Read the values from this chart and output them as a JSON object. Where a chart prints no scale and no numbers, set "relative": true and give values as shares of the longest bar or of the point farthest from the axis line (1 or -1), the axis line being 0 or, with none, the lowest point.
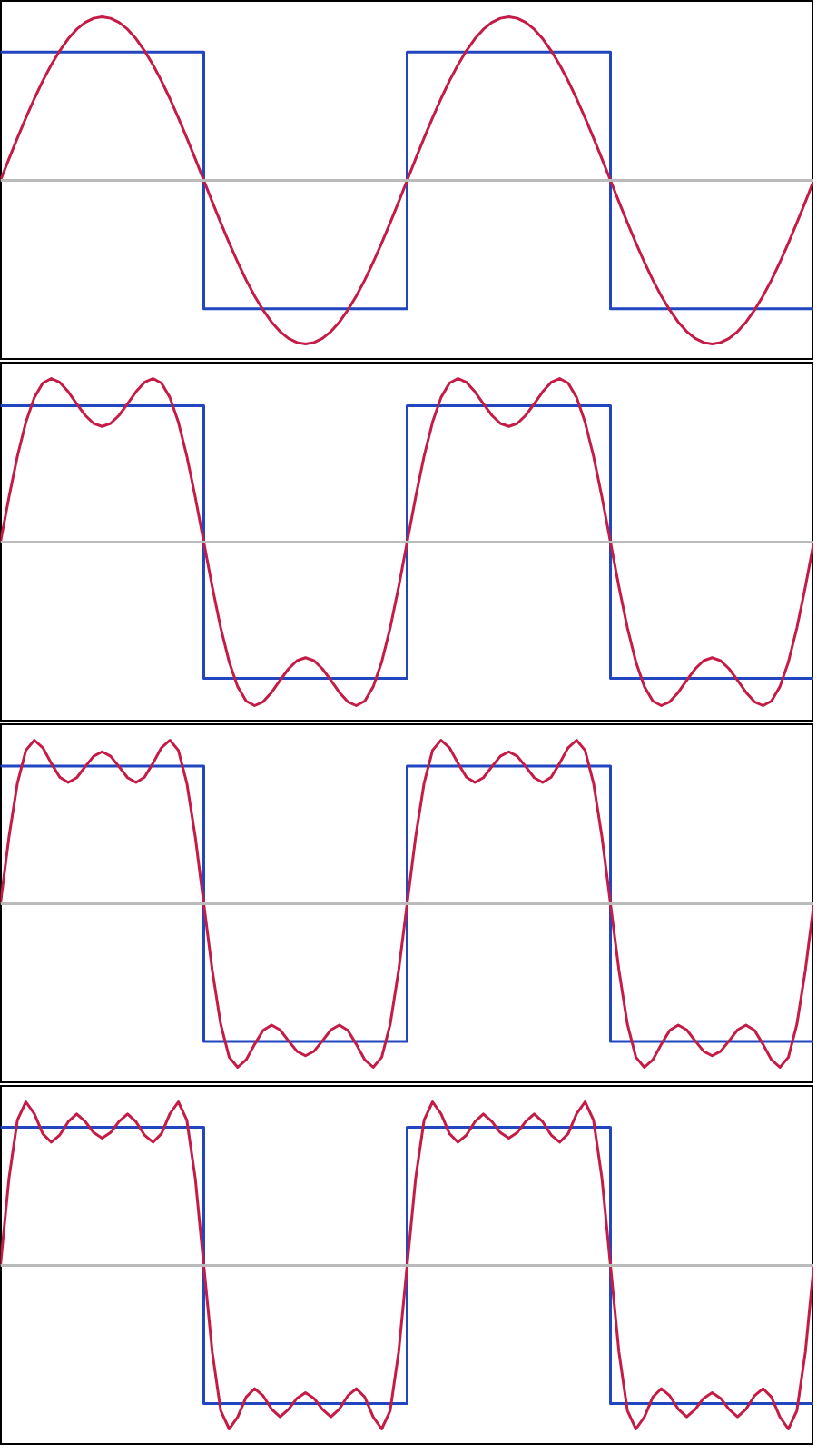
{
  "chart_data": [
    {
      "type": "line",
      "relative": true,
      "grid": false,
      "categories": [
        null,
        null,
        null,
        null,
        null,
        null,
        null,
        null,
        null,
        null,
        null,
        null,
        null,
        null,
        null,
        null,
        null,
        null,
        null,
        null,
        null,
        null,
        null,
        null,
        null,
        null,
        null,
        null,
        null,
        null,
        null,
        null,
        null,
        null,
        null,
        null,
        null,
        null,
        null,
        null,
        null,
        null,
        null,
        null,
        null,
        null,
        null,
        null,
        null,
        null,
        null,
        null,
        null,
        null,
        null,
        null,
        null,
        null,
        null,
        null,
        null,
        null,
        null,
        null,
        null,
        null,
        null,
        null,
        null,
        null,
        null,
        null,
        null,
        null,
        null,
        null,
        null,
        null,
        null,
        null,
        null,
        null,
        null,
        null,
        null,
        null,
        null,
        null,
        null,
        null,
        null,
        null,
        null,
        null,
        null,
        null,
        null
      ],
      "series": [
        {
          "type": "step",
          "color": "#2146c0",
          "values": [
            0.785,
            0.785,
            0.785,
            0.785,
            0.785,
            0.785,
            0.785,
            0.785,
            0.785,
            0.785,
            0.785,
            0.785,
            0.785,
            0.785,
            0.785,
            0.785,
            0.785,
            0.785,
            0.785,
            0.785,
            0.785,
            0.785,
            0.785,
            0.785,
            -0.785,
            -0.785,
            -0.785,
            -0.785,
            -0.785,
            -0.785,
            -0.785,
            -0.785,
            -0.785,
            -0.785,
            -0.785,
            -0.785,
            -0.785,
            -0.785,
            -0.785,
            -0.785,
            -0.785,
            -0.785,
            -0.785,
            -0.785,
            -0.785,
            -0.785,
            -0.785,
            -0.785,
            0.785,
            0.785,
            0.785,
            0.785,
            0.785,
            0.785,
            0.785,
            0.785,
            0.785,
            0.785,
            0.785,
            0.785,
            0.785,
            0.785,
            0.785,
            0.785,
            0.785,
            0.785,
            0.785,
            0.785,
            0.785,
            0.785,
            0.785,
            0.785,
            -0.785,
            -0.785,
            -0.785,
            -0.785,
            -0.785,
            -0.785,
            -0.785,
            -0.785,
            -0.785,
            -0.785,
            -0.785,
            -0.785,
            -0.785,
            -0.785,
            -0.785,
            -0.785,
            -0.785,
            -0.785,
            -0.785,
            -0.785,
            -0.785,
            -0.785,
            -0.785,
            -0.785,
            -0.785
          ]
        },
        {
          "color": "#c41c46",
          "values": [
            0,
            0.131,
            0.259,
            0.383,
            0.5,
            0.609,
            0.707,
            0.793,
            0.866,
            0.924,
            0.966,
            0.991,
            1,
            0.991,
            0.966,
            0.924,
            0.866,
            0.793,
            0.707,
            0.609,
            0.5,
            0.383,
            0.259,
            0.131,
            0,
            -0.131,
            -0.259,
            -0.383,
            -0.5,
            -0.609,
            -0.707,
            -0.793,
            -0.866,
            -0.924,
            -0.966,
            -0.991,
            -1,
            -0.991,
            -0.966,
            -0.924,
            -0.866,
            -0.793,
            -0.707,
            -0.609,
            -0.5,
            -0.383,
            -0.259,
            -0.131,
            0,
            0.131,
            0.259,
            0.383,
            0.5,
            0.609,
            0.707,
            0.793,
            0.866,
            0.924,
            0.966,
            0.991,
            1,
            0.991,
            0.966,
            0.924,
            0.866,
            0.793,
            0.707,
            0.609,
            0.5,
            0.383,
            0.259,
            0.131,
            0,
            -0.131,
            -0.259,
            -0.383,
            -0.5,
            -0.609,
            -0.707,
            -0.793,
            -0.866,
            -0.924,
            -0.966,
            -0.991,
            -1,
            -0.991,
            -0.966,
            -0.924,
            -0.866,
            -0.793,
            -0.707,
            -0.609,
            -0.5,
            -0.383,
            -0.259,
            -0.131,
            0
          ]
        }
      ]
    },
    {
      "type": "line",
      "relative": true,
      "grid": false,
      "categories": [
        null,
        null,
        null,
        null,
        null,
        null,
        null,
        null,
        null,
        null,
        null,
        null,
        null,
        null,
        null,
        null,
        null,
        null,
        null,
        null,
        null,
        null,
        null,
        null,
        null,
        null,
        null,
        null,
        null,
        null,
        null,
        null,
        null,
        null,
        null,
        null,
        null,
        null,
        null,
        null,
        null,
        null,
        null,
        null,
        null,
        null,
        null,
        null,
        null,
        null,
        null,
        null,
        null,
        null,
        null,
        null,
        null,
        null,
        null,
        null,
        null,
        null,
        null,
        null,
        null,
        null,
        null,
        null,
        null,
        null,
        null,
        null,
        null,
        null,
        null,
        null,
        null,
        null,
        null,
        null,
        null,
        null,
        null,
        null,
        null,
        null,
        null,
        null,
        null,
        null,
        null,
        null,
        null,
        null,
        null,
        null,
        null
      ],
      "series": [
        {
          "type": "step",
          "color": "#2146c0",
          "values": [
            0.833,
            0.833,
            0.833,
            0.833,
            0.833,
            0.833,
            0.833,
            0.833,
            0.833,
            0.833,
            0.833,
            0.833,
            0.833,
            0.833,
            0.833,
            0.833,
            0.833,
            0.833,
            0.833,
            0.833,
            0.833,
            0.833,
            0.833,
            0.833,
            -0.833,
            -0.833,
            -0.833,
            -0.833,
            -0.833,
            -0.833,
            -0.833,
            -0.833,
            -0.833,
            -0.833,
            -0.833,
            -0.833,
            -0.833,
            -0.833,
            -0.833,
            -0.833,
            -0.833,
            -0.833,
            -0.833,
            -0.833,
            -0.833,
            -0.833,
            -0.833,
            -0.833,
            0.833,
            0.833,
            0.833,
            0.833,
            0.833,
            0.833,
            0.833,
            0.833,
            0.833,
            0.833,
            0.833,
            0.833,
            0.833,
            0.833,
            0.833,
            0.833,
            0.833,
            0.833,
            0.833,
            0.833,
            0.833,
            0.833,
            0.833,
            0.833,
            -0.833,
            -0.833,
            -0.833,
            -0.833,
            -0.833,
            -0.833,
            -0.833,
            -0.833,
            -0.833,
            -0.833,
            -0.833,
            -0.833,
            -0.833,
            -0.833,
            -0.833,
            -0.833,
            -0.833,
            -0.833,
            -0.833,
            -0.833,
            -0.833,
            -0.833,
            -0.833,
            -0.833,
            -0.833
          ]
        },
        {
          "color": "#c41c46",
          "values": [
            0,
            0.274,
            0.525,
            0.733,
            0.884,
            0.972,
            1,
            0.977,
            0.919,
            0.845,
            0.775,
            0.725,
            0.707,
            0.725,
            0.775,
            0.845,
            0.919,
            0.977,
            1,
            0.972,
            0.884,
            0.733,
            0.525,
            0.274,
            0,
            -0.274,
            -0.525,
            -0.733,
            -0.884,
            -0.972,
            -1,
            -0.977,
            -0.919,
            -0.845,
            -0.775,
            -0.725,
            -0.707,
            -0.725,
            -0.775,
            -0.845,
            -0.919,
            -0.977,
            -1,
            -0.972,
            -0.884,
            -0.733,
            -0.525,
            -0.274,
            0,
            0.274,
            0.525,
            0.733,
            0.884,
            0.972,
            1,
            0.977,
            0.919,
            0.845,
            0.775,
            0.725,
            0.707,
            0.725,
            0.775,
            0.845,
            0.919,
            0.977,
            1,
            0.972,
            0.884,
            0.733,
            0.525,
            0.274,
            0,
            -0.274,
            -0.525,
            -0.733,
            -0.884,
            -0.972,
            -1,
            -0.977,
            -0.919,
            -0.845,
            -0.775,
            -0.725,
            -0.707,
            -0.725,
            -0.775,
            -0.845,
            -0.919,
            -0.977,
            -1,
            -0.972,
            -0.884,
            -0.733,
            -0.525,
            -0.274,
            0
          ]
        }
      ]
    },
    {
      "type": "line",
      "relative": true,
      "grid": false,
      "categories": [
        null,
        null,
        null,
        null,
        null,
        null,
        null,
        null,
        null,
        null,
        null,
        null,
        null,
        null,
        null,
        null,
        null,
        null,
        null,
        null,
        null,
        null,
        null,
        null,
        null,
        null,
        null,
        null,
        null,
        null,
        null,
        null,
        null,
        null,
        null,
        null,
        null,
        null,
        null,
        null,
        null,
        null,
        null,
        null,
        null,
        null,
        null,
        null,
        null,
        null,
        null,
        null,
        null,
        null,
        null,
        null,
        null,
        null,
        null,
        null,
        null,
        null,
        null,
        null,
        null,
        null,
        null,
        null,
        null,
        null,
        null,
        null,
        null,
        null,
        null,
        null,
        null,
        null,
        null,
        null,
        null,
        null,
        null,
        null,
        null,
        null,
        null,
        null,
        null,
        null,
        null,
        null,
        null,
        null,
        null,
        null,
        null
      ],
      "series": [
        {
          "type": "step",
          "color": "#2146c0",
          "values": [
            0.842,
            0.842,
            0.842,
            0.842,
            0.842,
            0.842,
            0.842,
            0.842,
            0.842,
            0.842,
            0.842,
            0.842,
            0.842,
            0.842,
            0.842,
            0.842,
            0.842,
            0.842,
            0.842,
            0.842,
            0.842,
            0.842,
            0.842,
            0.842,
            -0.842,
            -0.842,
            -0.842,
            -0.842,
            -0.842,
            -0.842,
            -0.842,
            -0.842,
            -0.842,
            -0.842,
            -0.842,
            -0.842,
            -0.842,
            -0.842,
            -0.842,
            -0.842,
            -0.842,
            -0.842,
            -0.842,
            -0.842,
            -0.842,
            -0.842,
            -0.842,
            -0.842,
            0.842,
            0.842,
            0.842,
            0.842,
            0.842,
            0.842,
            0.842,
            0.842,
            0.842,
            0.842,
            0.842,
            0.842,
            0.842,
            0.842,
            0.842,
            0.842,
            0.842,
            0.842,
            0.842,
            0.842,
            0.842,
            0.842,
            0.842,
            0.842,
            -0.842,
            -0.842,
            -0.842,
            -0.842,
            -0.842,
            -0.842,
            -0.842,
            -0.842,
            -0.842,
            -0.842,
            -0.842,
            -0.842,
            -0.842,
            -0.842,
            -0.842,
            -0.842,
            -0.842,
            -0.842,
            -0.842,
            -0.842,
            -0.842,
            -0.842,
            -0.842,
            -0.842,
            -0.842
          ]
        },
        {
          "color": "#c41c46",
          "values": [
            0,
            0.407,
            0.737,
            0.938,
            1,
            0.954,
            0.859,
            0.774,
            0.742,
            0.771,
            0.838,
            0.902,
            0.929,
            0.902,
            0.838,
            0.771,
            0.742,
            0.774,
            0.859,
            0.954,
            1,
            0.938,
            0.737,
            0.407,
            0,
            -0.407,
            -0.737,
            -0.938,
            -1,
            -0.954,
            -0.859,
            -0.774,
            -0.742,
            -0.771,
            -0.838,
            -0.902,
            -0.929,
            -0.902,
            -0.838,
            -0.771,
            -0.742,
            -0.774,
            -0.859,
            -0.954,
            -1,
            -0.938,
            -0.737,
            -0.407,
            0,
            0.407,
            0.737,
            0.938,
            1,
            0.954,
            0.859,
            0.774,
            0.742,
            0.771,
            0.838,
            0.902,
            0.929,
            0.902,
            0.838,
            0.771,
            0.742,
            0.774,
            0.859,
            0.954,
            1,
            0.938,
            0.737,
            0.407,
            0,
            -0.407,
            -0.737,
            -0.938,
            -1,
            -0.954,
            -0.859,
            -0.774,
            -0.742,
            -0.771,
            -0.838,
            -0.902,
            -0.929,
            -0.902,
            -0.838,
            -0.771,
            -0.742,
            -0.774,
            -0.859,
            -0.954,
            -1,
            -0.938,
            -0.737,
            -0.407,
            0
          ]
        }
      ]
    },
    {
      "type": "line",
      "relative": true,
      "grid": false,
      "categories": [
        null,
        null,
        null,
        null,
        null,
        null,
        null,
        null,
        null,
        null,
        null,
        null,
        null,
        null,
        null,
        null,
        null,
        null,
        null,
        null,
        null,
        null,
        null,
        null,
        null,
        null,
        null,
        null,
        null,
        null,
        null,
        null,
        null,
        null,
        null,
        null,
        null,
        null,
        null,
        null,
        null,
        null,
        null,
        null,
        null,
        null,
        null,
        null,
        null,
        null,
        null,
        null,
        null,
        null,
        null,
        null,
        null,
        null,
        null,
        null,
        null,
        null,
        null,
        null,
        null,
        null,
        null,
        null,
        null,
        null,
        null,
        null,
        null,
        null,
        null,
        null,
        null,
        null,
        null,
        null,
        null,
        null,
        null,
        null,
        null,
        null,
        null,
        null,
        null,
        null,
        null,
        null,
        null,
        null,
        null,
        null,
        null
      ],
      "series": [
        {
          "type": "step",
          "color": "#2146c0",
          "values": [
            0.844,
            0.844,
            0.844,
            0.844,
            0.844,
            0.844,
            0.844,
            0.844,
            0.844,
            0.844,
            0.844,
            0.844,
            0.844,
            0.844,
            0.844,
            0.844,
            0.844,
            0.844,
            0.844,
            0.844,
            0.844,
            0.844,
            0.844,
            0.844,
            -0.844,
            -0.844,
            -0.844,
            -0.844,
            -0.844,
            -0.844,
            -0.844,
            -0.844,
            -0.844,
            -0.844,
            -0.844,
            -0.844,
            -0.844,
            -0.844,
            -0.844,
            -0.844,
            -0.844,
            -0.844,
            -0.844,
            -0.844,
            -0.844,
            -0.844,
            -0.844,
            -0.844,
            0.844,
            0.844,
            0.844,
            0.844,
            0.844,
            0.844,
            0.844,
            0.844,
            0.844,
            0.844,
            0.844,
            0.844,
            0.844,
            0.844,
            0.844,
            0.844,
            0.844,
            0.844,
            0.844,
            0.844,
            0.844,
            0.844,
            0.844,
            0.844,
            -0.844,
            -0.844,
            -0.844,
            -0.844,
            -0.844,
            -0.844,
            -0.844,
            -0.844,
            -0.844,
            -0.844,
            -0.844,
            -0.844,
            -0.844,
            -0.844,
            -0.844,
            -0.844,
            -0.844,
            -0.844,
            -0.844,
            -0.844,
            -0.844,
            -0.844,
            -0.844,
            -0.844,
            -0.844
          ]
        },
        {
          "color": "#c41c46",
          "values": [
            0,
            0.53,
            0.888,
            1,
            0.927,
            0.805,
            0.753,
            0.797,
            0.878,
            0.926,
            0.88,
            0.812,
            0.778,
            0.812,
            0.88,
            0.926,
            0.878,
            0.797,
            0.753,
            0.805,
            0.927,
            1,
            0.888,
            0.53,
            0,
            -0.53,
            -0.888,
            -1,
            -0.927,
            -0.805,
            -0.753,
            -0.797,
            -0.878,
            -0.926,
            -0.88,
            -0.812,
            -0.778,
            -0.812,
            -0.88,
            -0.926,
            -0.878,
            -0.797,
            -0.753,
            -0.805,
            -0.927,
            -1,
            -0.888,
            -0.53,
            0,
            0.53,
            0.888,
            1,
            0.927,
            0.805,
            0.753,
            0.797,
            0.878,
            0.926,
            0.88,
            0.812,
            0.778,
            0.812,
            0.88,
            0.926,
            0.878,
            0.797,
            0.753,
            0.805,
            0.927,
            1,
            0.888,
            0.53,
            0,
            -0.53,
            -0.888,
            -1,
            -0.927,
            -0.805,
            -0.753,
            -0.797,
            -0.878,
            -0.926,
            -0.88,
            -0.812,
            -0.778,
            -0.812,
            -0.88,
            -0.926,
            -0.878,
            -0.797,
            -0.753,
            -0.805,
            -0.927,
            -1,
            -0.888,
            -0.53,
            0
          ]
        }
      ]
    }
  ]
}
